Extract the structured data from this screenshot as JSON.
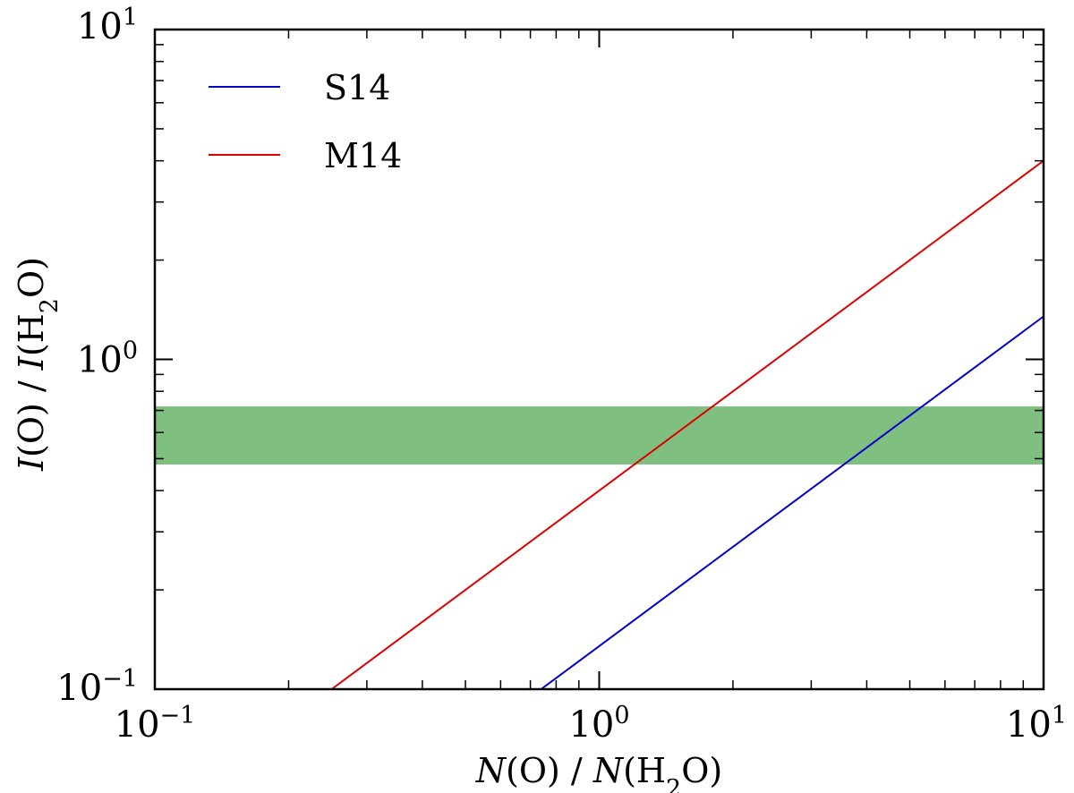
{
  "chart_data": {
    "type": "line",
    "xscale": "log",
    "yscale": "log",
    "xlim": [
      0.1,
      10
    ],
    "ylim": [
      0.1,
      10
    ],
    "x_tick_labels": [
      {
        "value": 0.1,
        "base": "10",
        "exp": "−1"
      },
      {
        "value": 1,
        "base": "10",
        "exp": "0"
      },
      {
        "value": 10,
        "base": "10",
        "exp": "1"
      }
    ],
    "y_tick_labels": [
      {
        "value": 0.1,
        "base": "10",
        "exp": "−1"
      },
      {
        "value": 1,
        "base": "10",
        "exp": "0"
      },
      {
        "value": 10,
        "base": "10",
        "exp": "1"
      }
    ],
    "xlabel": {
      "full": "N(O) / N(H2O)",
      "sym1": "N",
      "mid1": "(O) / ",
      "sym2": "N",
      "mid2": "(H",
      "sub": "2",
      "tail": "O)"
    },
    "ylabel": {
      "full": "I(O) / I(H2O)",
      "sym1": "I",
      "mid1": "(O) / ",
      "sym2": "I",
      "mid2": "(H",
      "sub": "2",
      "tail": "O)"
    },
    "band": {
      "ymin": 0.48,
      "ymax": 0.72,
      "color": "#7fbf7f"
    },
    "series": [
      {
        "name": "S14",
        "color": "#0000cc",
        "x": [
          0.74,
          10
        ],
        "y": [
          0.1,
          1.35
        ]
      },
      {
        "name": "M14",
        "color": "#dd0000",
        "x": [
          0.25,
          10
        ],
        "y": [
          0.1,
          4.0
        ]
      }
    ],
    "legend_position": "top-left",
    "grid": false
  }
}
